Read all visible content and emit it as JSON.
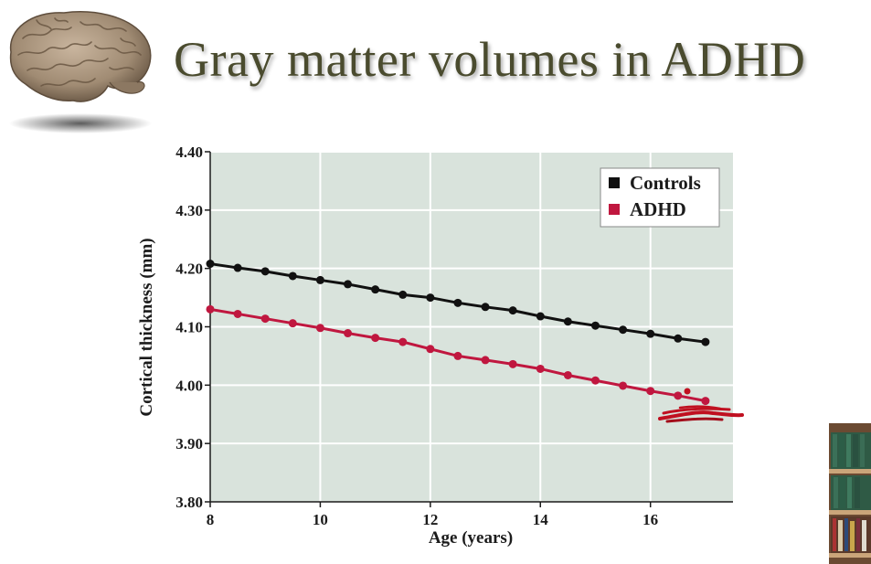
{
  "slide": {
    "title": "Gray matter volumes in ADHD"
  },
  "icons": {
    "brain": "brain-illustration",
    "bookshelf": "bookshelf-thumbnail"
  },
  "chart_data": {
    "type": "line",
    "title": "",
    "xlabel": "Age (years)",
    "ylabel": "Cortical thickness (mm)",
    "xlim": [
      8,
      17.5
    ],
    "ylim": [
      3.8,
      4.4
    ],
    "x_ticks": [
      8,
      10,
      12,
      14,
      16
    ],
    "y_ticks": [
      3.8,
      3.9,
      4.0,
      4.1,
      4.2,
      4.3,
      4.4
    ],
    "y_tick_labels": [
      "3.80",
      "3.90",
      "4.00",
      "4.10",
      "4.20",
      "4.30",
      "4.40"
    ],
    "x_tick_labels": [
      "8",
      "10",
      "12",
      "14",
      "16"
    ],
    "grid": true,
    "legend_position": "top-right",
    "plot_background": "#d9e3dc",
    "x": [
      8,
      8.5,
      9,
      9.5,
      10,
      10.5,
      11,
      11.5,
      12,
      12.5,
      13,
      13.5,
      14,
      14.5,
      15,
      15.5,
      16,
      16.5,
      17
    ],
    "series": [
      {
        "name": "Controls",
        "color": "#111111",
        "values": [
          4.208,
          4.201,
          4.195,
          4.187,
          4.18,
          4.173,
          4.164,
          4.155,
          4.15,
          4.141,
          4.134,
          4.128,
          4.118,
          4.109,
          4.102,
          4.095,
          4.088,
          4.08,
          4.074
        ]
      },
      {
        "name": "ADHD",
        "color": "#c0173f",
        "values": [
          4.13,
          4.122,
          4.114,
          4.106,
          4.098,
          4.089,
          4.081,
          4.074,
          4.062,
          4.05,
          4.043,
          4.036,
          4.028,
          4.017,
          4.008,
          3.999,
          3.99,
          3.982,
          3.973
        ]
      }
    ],
    "annotation_color": "#c01020"
  }
}
